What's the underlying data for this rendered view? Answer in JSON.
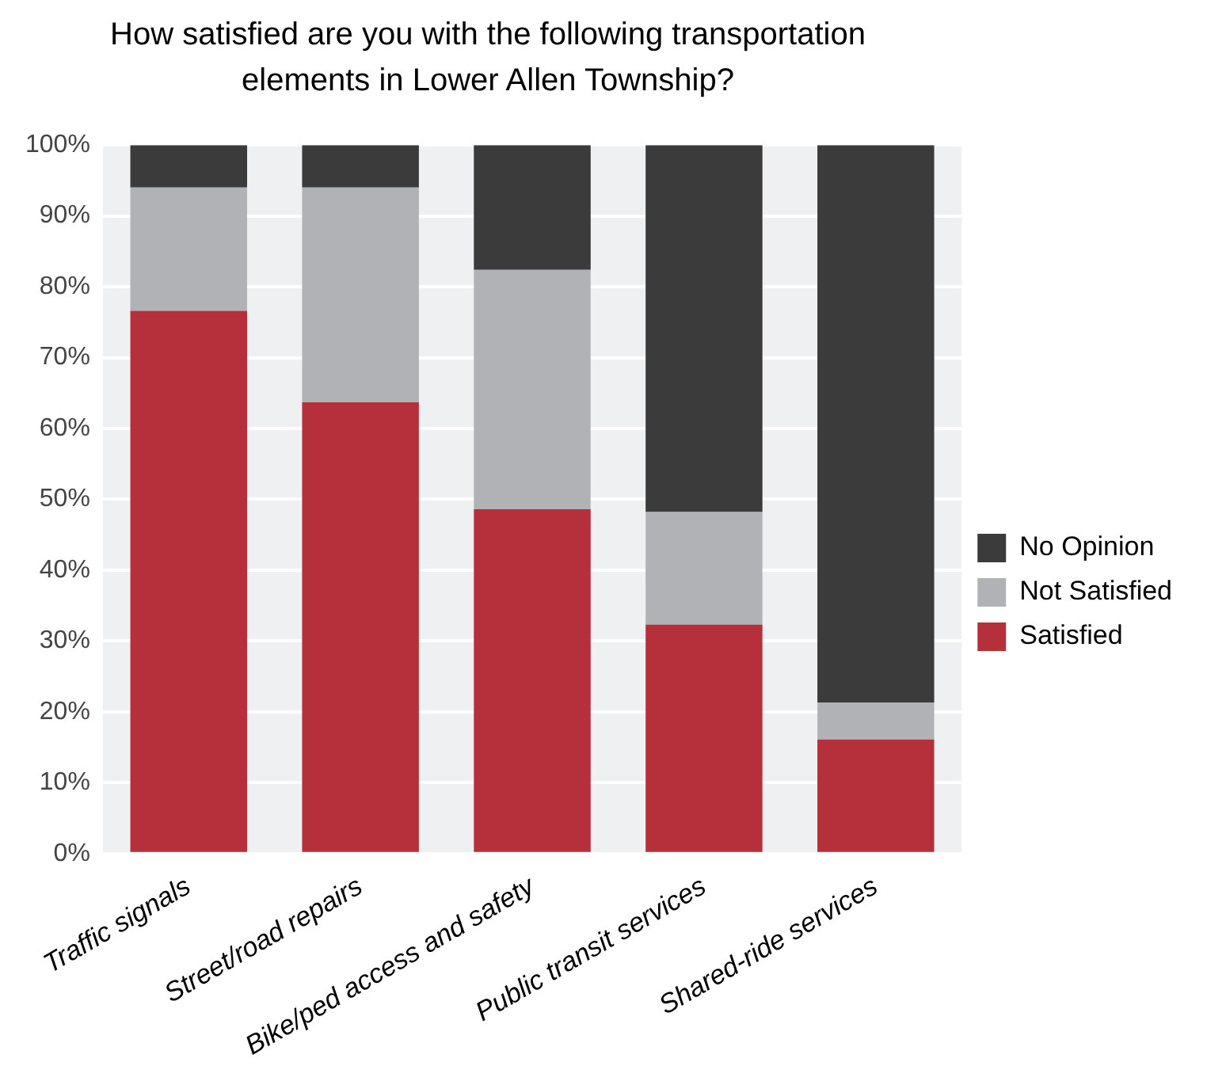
{
  "chart_data": {
    "type": "bar",
    "title": "How satisfied are you with the following transportation elements in Lower Allen Township?",
    "categories": [
      "Traffic signals",
      "Street/road repairs",
      "Bike/ped access and safety",
      "Public transit services",
      "Shared-ride services"
    ],
    "stacked": true,
    "series": [
      {
        "name": "Satisfied",
        "color": "#b5303a",
        "values": [
          76.6,
          63.7,
          48.6,
          32.3,
          16.1
        ]
      },
      {
        "name": "Not Satisfied",
        "color": "#b1b2b6",
        "values": [
          17.4,
          30.3,
          33.8,
          15.9,
          5.2
        ]
      },
      {
        "name": "No Opinion",
        "color": "#3b3b3b",
        "values": [
          6.0,
          6.0,
          17.6,
          51.8,
          78.7
        ]
      }
    ],
    "ylim": [
      0,
      100
    ],
    "yticks": [
      {
        "value": 0,
        "label": "0%"
      },
      {
        "value": 10,
        "label": "10%"
      },
      {
        "value": 20,
        "label": "20%"
      },
      {
        "value": 30,
        "label": "30%"
      },
      {
        "value": 40,
        "label": "40%"
      },
      {
        "value": 50,
        "label": "50%"
      },
      {
        "value": 60,
        "label": "60%"
      },
      {
        "value": 70,
        "label": "70%"
      },
      {
        "value": 80,
        "label": "80%"
      },
      {
        "value": 90,
        "label": "90%"
      },
      {
        "value": 100,
        "label": "100%"
      }
    ],
    "grid": "y",
    "legend": "right"
  }
}
